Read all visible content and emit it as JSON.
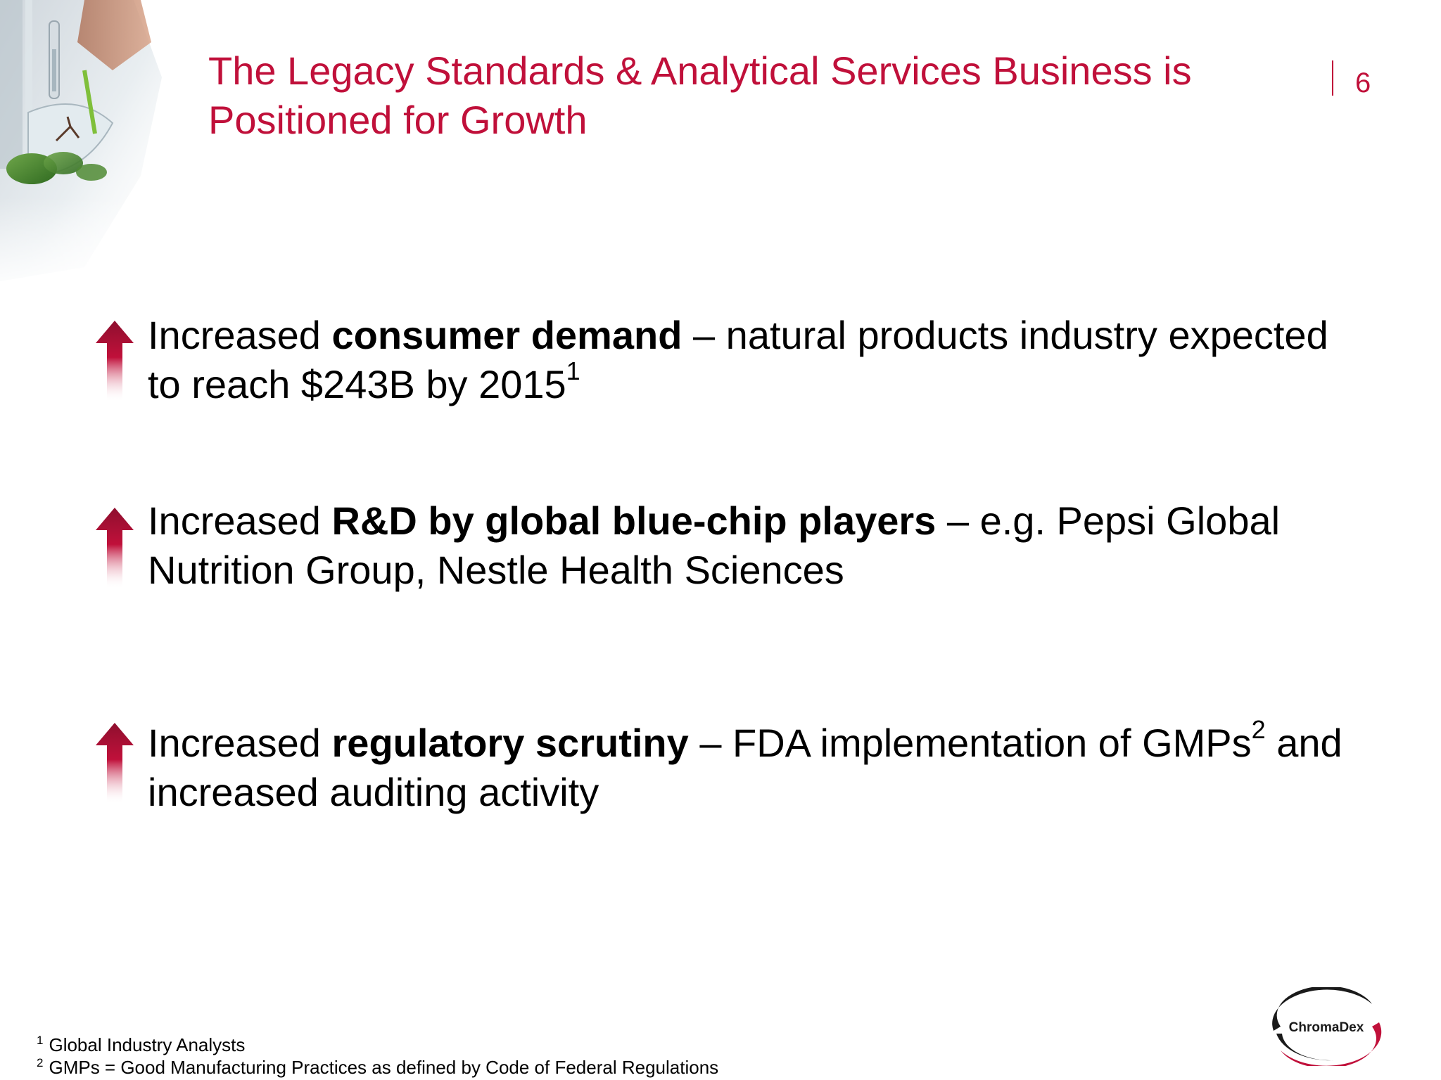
{
  "slide": {
    "title_lines": [
      "The Legacy Standards & Analytical Services Business is",
      "Positioned for Growth"
    ],
    "page_number": "6"
  },
  "bullets": [
    {
      "lines": [
        {
          "pre": "Increased ",
          "bold": "consumer demand",
          "post": " – natural products industry expected"
        },
        {
          "pre": "to reach $243B by 2015",
          "sup": "1"
        }
      ]
    },
    {
      "lines": [
        {
          "pre": "Increased ",
          "bold": "R&D by global blue-chip players",
          "post": " – e.g. Pepsi Global"
        },
        {
          "pre": "Nutrition Group, Nestle Health Sciences"
        }
      ]
    },
    {
      "lines": [
        {
          "pre": "Increased ",
          "bold": "regulatory scrutiny",
          "post": " – FDA implementation of GMPs",
          "sup": "2",
          "post2": " and"
        },
        {
          "pre": "increased auditing activity"
        }
      ]
    }
  ],
  "footnotes": [
    {
      "mark": "1",
      "text": "Global Industry Analysts"
    },
    {
      "mark": "2",
      "text": "GMPs = Good Manufacturing Practices as defined by Code of Federal Regulations"
    }
  ],
  "logo": {
    "text": "ChromaDex"
  },
  "colors": {
    "accent": "#c0103a",
    "text": "#000000",
    "arrow_top": "#8e0f2e",
    "arrow_mid": "#c0103a"
  },
  "icons": {
    "bullet_icon": "arrow-up-icon",
    "corner_image": "lab-plant-photo"
  }
}
